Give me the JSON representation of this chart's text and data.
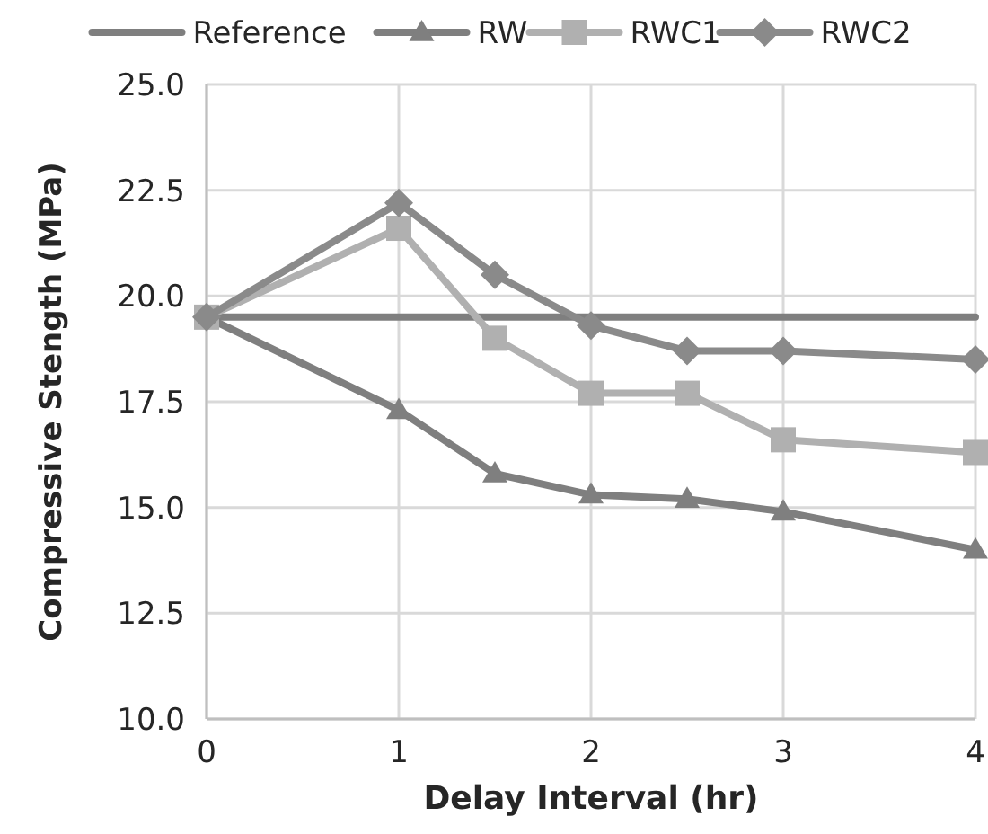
{
  "chart_data": {
    "type": "line",
    "xlabel": "Delay Interval (hr)",
    "ylabel": "Compressive Stength (MPa)",
    "x": [
      0,
      1,
      1.5,
      2,
      2.5,
      3,
      4
    ],
    "xlim": [
      0,
      4
    ],
    "xticks": [
      0,
      1,
      2,
      3,
      4
    ],
    "ylim": [
      10,
      25
    ],
    "yticks": [
      {
        "value": 10,
        "label": "10.0"
      },
      {
        "value": 12.5,
        "label": "12.5"
      },
      {
        "value": 15,
        "label": "15.0"
      },
      {
        "value": 17.5,
        "label": "17.5"
      },
      {
        "value": 20,
        "label": "20.0"
      },
      {
        "value": 22.5,
        "label": "22.5"
      },
      {
        "value": 25,
        "label": "25.0"
      }
    ],
    "grid": true,
    "legend": "top",
    "series": [
      {
        "name": "Reference",
        "color": "#7f7f7f",
        "x": [
          0,
          4
        ],
        "values": [
          19.5,
          19.5
        ]
      },
      {
        "name": "RW",
        "color": "#7f7f7f",
        "marker": "triangle",
        "values": [
          19.5,
          17.3,
          15.8,
          15.3,
          15.2,
          14.9,
          14.0
        ]
      },
      {
        "name": "RWC1",
        "color": "#b0b0b0",
        "marker": "square",
        "values": [
          19.5,
          21.6,
          19.0,
          17.7,
          17.7,
          16.6,
          16.3
        ]
      },
      {
        "name": "RWC2",
        "color": "#8a8a8a",
        "marker": "diamond",
        "values": [
          19.5,
          22.2,
          20.5,
          19.3,
          18.7,
          18.7,
          18.5
        ]
      }
    ]
  }
}
